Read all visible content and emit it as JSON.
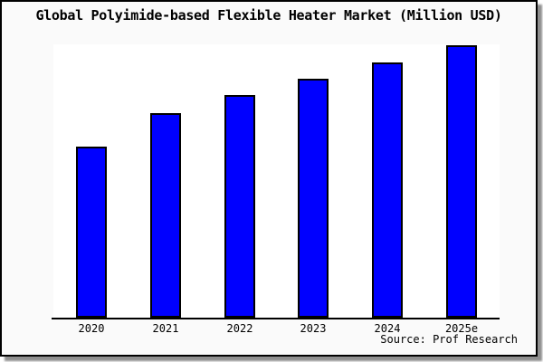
{
  "chart_data": {
    "type": "bar",
    "title": "Global Polyimide-based Flexible Heater Market (Million USD)",
    "categories": [
      "2020",
      "2021",
      "2022",
      "2023",
      "2024",
      "2025e"
    ],
    "values": [
      62.8,
      75.1,
      81.7,
      87.7,
      93.7,
      100
    ],
    "values_unit": "percent of 2025e bar height (y-axis unlabeled, estimated from pixels)",
    "xlabel": "",
    "ylabel": "",
    "ylim": [
      0,
      100
    ],
    "grid": false,
    "legend": "none",
    "bar_fill_color": "#0000ff",
    "bar_border_color": "#000000"
  },
  "source": {
    "label": "Source: Prof Research"
  },
  "colors": {
    "card_background": "#fafafa",
    "plot_background": "#ffffff",
    "frame_border": "#000000",
    "shadow": "#8f8f8f",
    "title_text": "#000000",
    "tick_text": "#000000"
  }
}
